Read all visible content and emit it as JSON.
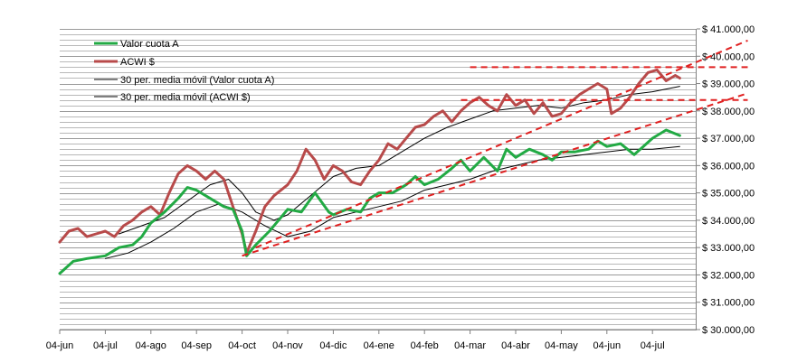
{
  "chart_data": {
    "type": "line",
    "title": "",
    "xlabel": "",
    "ylabel": "",
    "ylim": [
      30000,
      41000
    ],
    "grid": true,
    "legend_position": "top-left",
    "x_tick_labels": [
      "04-jun",
      "04-jul",
      "04-ago",
      "04-sep",
      "04-oct",
      "04-nov",
      "04-dic",
      "04-ene",
      "04-feb",
      "04-mar",
      "04-abr",
      "04-may",
      "04-jun",
      "04-jul"
    ],
    "y_tick_labels": [
      "$ 30.000,00",
      "$ 31.000,00",
      "$ 32.000,00",
      "$ 33.000,00",
      "$ 34.000,00",
      "$ 35.000,00",
      "$ 36.000,00",
      "$ 37.000,00",
      "$ 38.000,00",
      "$ 39.000,00",
      "$ 40.000,00",
      "$ 41.000,00"
    ],
    "y_ticks": [
      30000,
      31000,
      32000,
      33000,
      34000,
      35000,
      36000,
      37000,
      38000,
      39000,
      40000,
      41000
    ],
    "x_range_months": [
      0,
      13.7
    ],
    "series": [
      {
        "name": "Valor cuota A",
        "color": "#22aa44",
        "style": "thick",
        "x": [
          0,
          0.3,
          0.6,
          1,
          1.3,
          1.6,
          1.8,
          2,
          2.3,
          2.6,
          2.8,
          3,
          3.3,
          3.6,
          3.8,
          4,
          4.1,
          4.3,
          4.6,
          4.8,
          5,
          5.3,
          5.6,
          5.9,
          6,
          6.3,
          6.6,
          6.8,
          7,
          7.3,
          7.6,
          7.8,
          8,
          8.3,
          8.6,
          8.8,
          9,
          9.3,
          9.6,
          9.8,
          10,
          10.3,
          10.6,
          10.8,
          11,
          11.3,
          11.6,
          11.8,
          12,
          12.3,
          12.6,
          12.8,
          13,
          13.3,
          13.6
        ],
        "y": [
          32050,
          32500,
          32600,
          32700,
          33000,
          33100,
          33400,
          33900,
          34300,
          34800,
          35200,
          35100,
          34800,
          34500,
          34400,
          33600,
          32700,
          33100,
          33600,
          34000,
          34400,
          34300,
          35000,
          34300,
          34200,
          34400,
          34300,
          34800,
          35000,
          35000,
          35300,
          35600,
          35300,
          35500,
          35900,
          36200,
          35800,
          36300,
          35800,
          36600,
          36300,
          36600,
          36400,
          36200,
          36500,
          36500,
          36600,
          36900,
          36700,
          36800,
          36400,
          36700,
          37000,
          37300,
          37100
        ]
      },
      {
        "name": "ACWI $",
        "color": "#b84a4a",
        "style": "thick",
        "x": [
          0,
          0.2,
          0.4,
          0.6,
          0.8,
          1,
          1.2,
          1.4,
          1.6,
          1.8,
          2,
          2.2,
          2.4,
          2.6,
          2.8,
          3,
          3.2,
          3.4,
          3.6,
          3.8,
          4,
          4.1,
          4.3,
          4.5,
          4.7,
          5,
          5.2,
          5.4,
          5.6,
          5.8,
          6,
          6.2,
          6.4,
          6.6,
          6.8,
          7,
          7.2,
          7.4,
          7.6,
          7.8,
          8,
          8.2,
          8.4,
          8.6,
          8.8,
          9,
          9.2,
          9.4,
          9.6,
          9.8,
          10,
          10.2,
          10.4,
          10.6,
          10.8,
          11,
          11.2,
          11.4,
          11.6,
          11.8,
          12,
          12.1,
          12.3,
          12.5,
          12.7,
          12.9,
          13.1,
          13.3,
          13.5,
          13.6
        ],
        "y": [
          33200,
          33600,
          33700,
          33400,
          33500,
          33600,
          33400,
          33800,
          34000,
          34300,
          34500,
          34200,
          35000,
          35700,
          36000,
          35800,
          35500,
          35800,
          35500,
          34500,
          33500,
          32800,
          33600,
          34500,
          34900,
          35300,
          35800,
          36600,
          36200,
          35500,
          36000,
          35800,
          35400,
          35300,
          35800,
          36200,
          36800,
          36600,
          37000,
          37400,
          37500,
          37800,
          38000,
          37600,
          38000,
          38300,
          38500,
          38200,
          38000,
          38600,
          38200,
          38400,
          37900,
          38300,
          37800,
          37900,
          38300,
          38600,
          38800,
          39000,
          38800,
          37900,
          38100,
          38500,
          39000,
          39400,
          39500,
          39100,
          39300,
          39200
        ]
      },
      {
        "name": "30 per. media móvil (Valor cuota A)",
        "color": "#000000",
        "style": "thin",
        "x": [
          1,
          1.5,
          2,
          2.5,
          3,
          3.5,
          4,
          4.5,
          5,
          5.5,
          6,
          6.5,
          7,
          7.5,
          8,
          8.5,
          9,
          9.5,
          10,
          10.5,
          11,
          11.5,
          12,
          12.5,
          13,
          13.6
        ],
        "y": [
          32600,
          32800,
          33200,
          33700,
          34300,
          34600,
          34300,
          33800,
          33400,
          33600,
          34100,
          34300,
          34500,
          34700,
          35100,
          35300,
          35500,
          35800,
          36000,
          36200,
          36300,
          36400,
          36500,
          36600,
          36600,
          36700
        ]
      },
      {
        "name": "30 per. media móvil (ACWI $)",
        "color": "#000000",
        "style": "thin",
        "x": [
          1.3,
          1.8,
          2.3,
          2.8,
          3.3,
          3.7,
          4,
          4.3,
          4.7,
          5,
          5.5,
          6,
          6.5,
          7,
          7.5,
          8,
          8.5,
          9,
          9.5,
          10,
          10.5,
          11,
          11.5,
          12,
          12.5,
          13,
          13.6
        ],
        "y": [
          33500,
          33800,
          34100,
          34700,
          35300,
          35500,
          35000,
          34300,
          34000,
          34200,
          34900,
          35600,
          35900,
          36000,
          36500,
          37000,
          37400,
          37700,
          38000,
          38100,
          38200,
          38100,
          38300,
          38400,
          38600,
          38700,
          38900
        ]
      }
    ],
    "trend_lines": [
      {
        "color": "#e02020",
        "x": [
          4.3,
          13.7
        ],
        "y": [
          33000,
          39600
        ]
      },
      {
        "color": "#e02020",
        "x": [
          4.0,
          13.7
        ],
        "y": [
          32700,
          37900
        ]
      },
      {
        "color": "#e02020",
        "x": [
          9.0,
          13.7
        ],
        "y": [
          39600,
          39600
        ]
      },
      {
        "color": "#e02020",
        "x": [
          8.8,
          13.7
        ],
        "y": [
          38400,
          38400
        ]
      }
    ]
  }
}
